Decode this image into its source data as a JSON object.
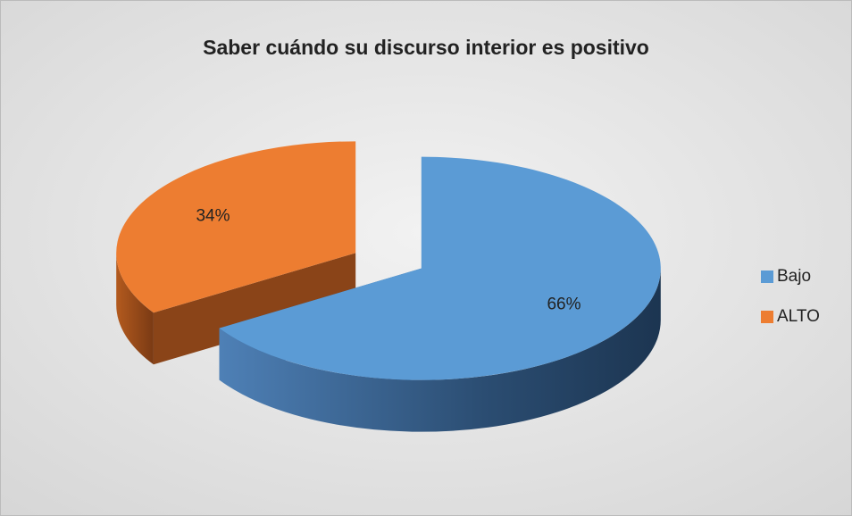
{
  "chart_data": {
    "type": "pie3d",
    "title": "Saber cuándo su discurso interior es positivo",
    "categories": [
      "Bajo",
      "ALTO"
    ],
    "values": [
      66,
      34
    ],
    "value_labels": [
      "66%",
      "34%"
    ],
    "colors": [
      "#5b9bd5",
      "#ed7d31"
    ],
    "legend": "right"
  }
}
